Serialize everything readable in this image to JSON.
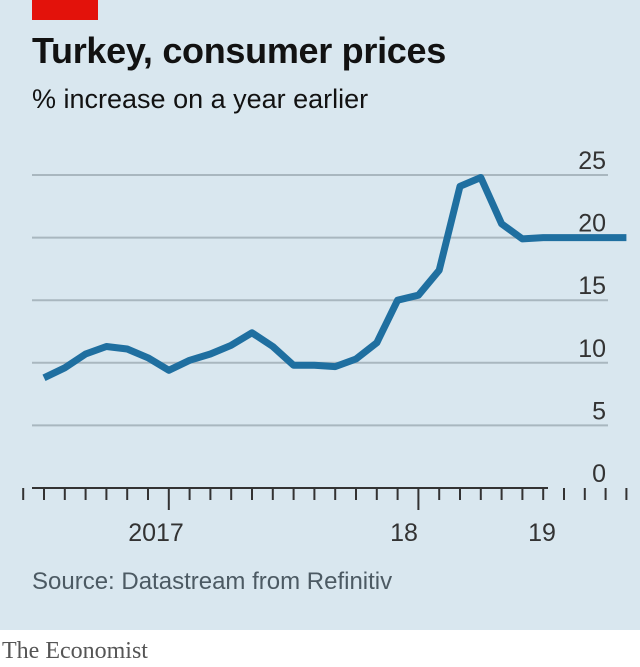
{
  "brand_color": "#e3120b",
  "line_color": "#1f6fa0",
  "header": {
    "title": "Turkey, consumer prices",
    "subtitle": "% increase on a year earlier"
  },
  "footer": {
    "source": "Source: Datastream from Refinitiv",
    "publisher": "The Economist"
  },
  "chart_data": {
    "type": "line",
    "title": "Turkey, consumer prices",
    "subtitle": "% increase on a year earlier",
    "xlabel": "",
    "ylabel": "",
    "ylim": [
      0,
      25
    ],
    "yticks": [
      0,
      5,
      10,
      15,
      20,
      25
    ],
    "ytick_labels": [
      "0",
      "5",
      "10",
      "15",
      "20",
      "25"
    ],
    "x_tick_labels": [
      {
        "label": "2017",
        "year": 2017
      },
      {
        "label": "18",
        "year": 2018
      },
      {
        "label": "19",
        "year": 2019
      }
    ],
    "grid": true,
    "x": [
      "2016-07",
      "2016-08",
      "2016-09",
      "2016-10",
      "2016-11",
      "2016-12",
      "2017-01",
      "2017-02",
      "2017-03",
      "2017-04",
      "2017-05",
      "2017-06",
      "2017-07",
      "2017-08",
      "2017-09",
      "2017-10",
      "2017-11",
      "2017-12",
      "2018-01",
      "2018-02",
      "2018-03",
      "2018-04",
      "2018-05",
      "2018-06",
      "2018-07",
      "2018-08",
      "2018-09",
      "2018-10",
      "2018-11",
      "2018-12"
    ],
    "series": [
      {
        "values": [
          8.8,
          9.6,
          10.7,
          11.3,
          11.1,
          10.4,
          9.4,
          10.2,
          10.7,
          11.4,
          12.4,
          11.3,
          9.8,
          9.8,
          9.7,
          10.3,
          11.6,
          15.0,
          15.4,
          17.4,
          24.1,
          24.8,
          21.1,
          19.9,
          20.0,
          20.0,
          20.0,
          20.0,
          20.0,
          20.0
        ]
      }
    ]
  }
}
